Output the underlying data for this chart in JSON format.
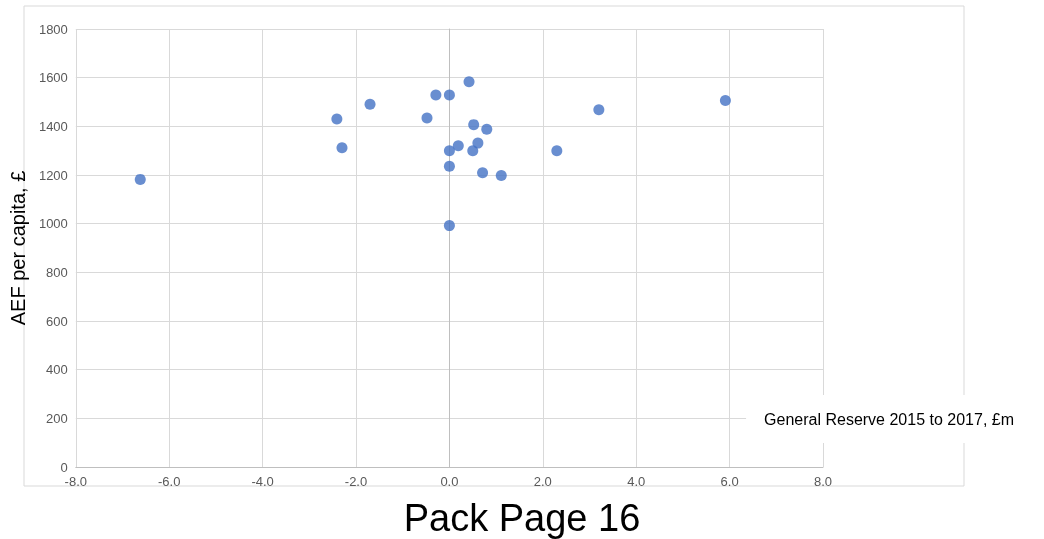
{
  "chart_data": {
    "type": "scatter",
    "xlabel": "General Reserve 2015 to 2017, £m",
    "ylabel": "AEF per capita, £",
    "annotations": [
      "Pack Page 16"
    ],
    "series": [
      {
        "color": "#4472c4",
        "x": [
          -6.62,
          -2.41,
          -2.3,
          -1.7,
          -0.48,
          -0.29,
          0,
          0.42,
          0,
          0.19,
          0,
          0,
          0.52,
          0.8,
          0.61,
          0.5,
          0.71,
          1.11,
          2.3,
          3.2,
          5.91
        ],
        "values": [
          1182,
          1430,
          1312,
          1491,
          1434,
          1529,
          1529,
          1583,
          1300,
          1320,
          1236,
          992,
          1407,
          1388,
          1331,
          1300,
          1209,
          1198,
          1300,
          1468,
          1506
        ]
      }
    ],
    "xlim": [
      -8,
      8
    ],
    "xticks": [
      {
        "value": -8,
        "label": "-8.0"
      },
      {
        "value": -6,
        "label": "-6.0"
      },
      {
        "value": -4,
        "label": "-4.0"
      },
      {
        "value": -2,
        "label": "-2.0"
      },
      {
        "value": 0,
        "label": "0.0"
      },
      {
        "value": 2,
        "label": "2.0"
      },
      {
        "value": 4,
        "label": "4.0"
      },
      {
        "value": 6,
        "label": "6.0"
      },
      {
        "value": 8,
        "label": "8.0"
      }
    ],
    "ylim": [
      0,
      1800
    ],
    "yticks": [
      0,
      200,
      400,
      600,
      800,
      1000,
      1200,
      1400,
      1600,
      1800
    ],
    "grid": true,
    "marker": "circle"
  }
}
